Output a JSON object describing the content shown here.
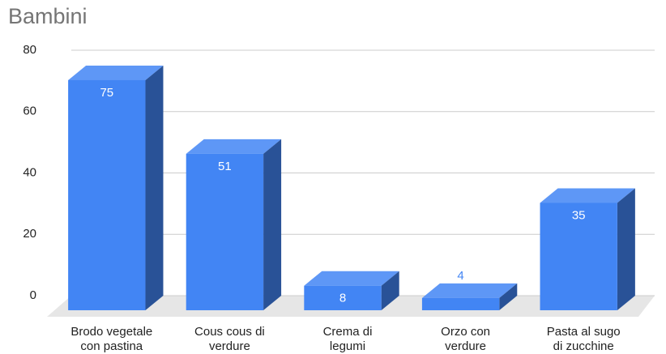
{
  "chart_data": {
    "type": "bar3d",
    "title": "Bambini",
    "categories": [
      "Brodo vegetale\ncon pastina",
      "Cous cous di\nverdure",
      "Crema di\nlegumi",
      "Orzo con\nverdure",
      "Pasta al sugo\ndi zucchine"
    ],
    "values": [
      75,
      51,
      8,
      4,
      35
    ],
    "color": "#4285f4",
    "ylim": [
      0,
      80
    ],
    "yticks": [
      0,
      20,
      40,
      60,
      80
    ],
    "grid": true
  }
}
